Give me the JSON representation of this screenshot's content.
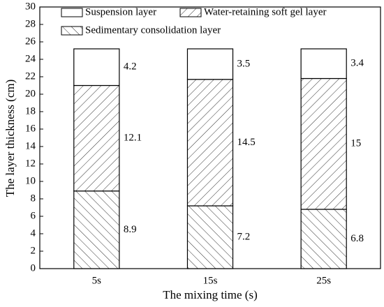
{
  "chart_data": {
    "type": "stacked-bar",
    "x_label": "The mixing time (s)",
    "y_label": "The layer thickness (cm)",
    "categories": [
      "5s",
      "15s",
      "25s"
    ],
    "series": [
      {
        "name": "Sedimentary consolidation layer",
        "color": "#000000",
        "hatch": "backslash",
        "values": [
          8.9,
          7.2,
          6.8
        ]
      },
      {
        "name": "Water-retaining soft gel layer",
        "color": "#000000",
        "hatch": "slash",
        "values": [
          12.1,
          14.5,
          15
        ]
      },
      {
        "name": "Suspension layer",
        "color": "#000000",
        "hatch": "none",
        "values": [
          4.2,
          3.5,
          3.4
        ]
      }
    ],
    "ylim": [
      0,
      30
    ],
    "yticks": [
      0,
      2,
      4,
      6,
      8,
      10,
      12,
      14,
      16,
      18,
      20,
      22,
      24,
      26,
      28,
      30
    ],
    "legend": "upper-left"
  }
}
